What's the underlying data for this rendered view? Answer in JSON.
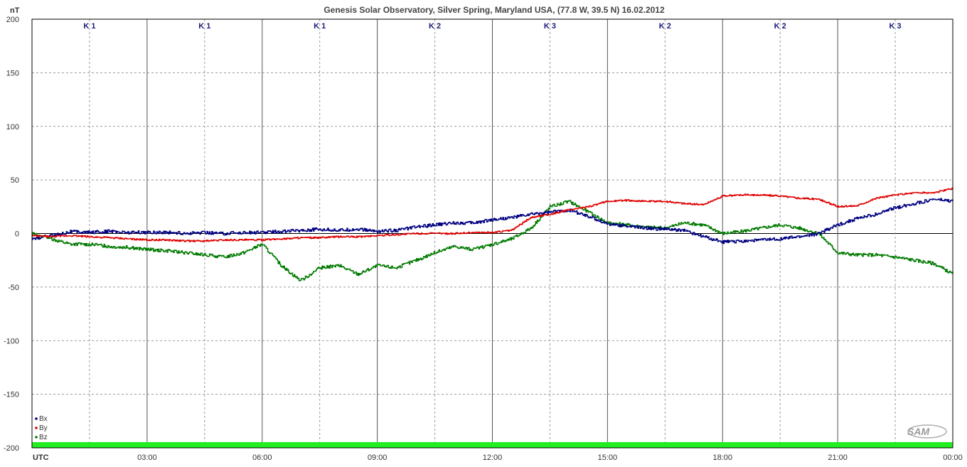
{
  "chart_data": {
    "type": "line",
    "title": "Genesis Solar Observatory, Silver Spring, Maryland USA, (77.8 W, 39.5 N)  16.02.2012",
    "ylabel": "nT",
    "xlabel": "UTC",
    "ylim": [
      -200,
      200
    ],
    "y_ticks": [
      "200",
      "150",
      "100",
      "50",
      "0",
      "-50",
      "-100",
      "-150",
      "-200"
    ],
    "x_ticks": [
      "03:00",
      "06:00",
      "09:00",
      "12:00",
      "15:00",
      "18:00",
      "21:00",
      "00:00"
    ],
    "k_index": [
      "K 1",
      "K 1",
      "K 1",
      "K 2",
      "K 3",
      "K 2",
      "K 2",
      "K 3"
    ],
    "legend_position": "bottom-left",
    "logo": "SAM",
    "grid": true,
    "colors": {
      "Bx": "#000080",
      "By": "#e00000",
      "Bz": "#007a00",
      "baseline_bar": "#22ee22"
    },
    "series": [
      {
        "name": "Bx",
        "x_hours": [
          0,
          0.5,
          1,
          1.5,
          2,
          2.5,
          3,
          3.5,
          4,
          4.5,
          5,
          5.5,
          6,
          6.5,
          7,
          7.5,
          8,
          8.5,
          9,
          9.5,
          10,
          10.5,
          11,
          11.5,
          12,
          12.5,
          13,
          13.5,
          14,
          14.5,
          15,
          15.5,
          16,
          16.5,
          17,
          17.5,
          18,
          18.5,
          19,
          19.5,
          20,
          20.5,
          21,
          21.5,
          22,
          22.5,
          23,
          23.5,
          24
        ],
        "values": [
          -5,
          -2,
          2,
          1,
          2,
          1,
          1,
          1,
          0,
          1,
          0,
          1,
          1,
          2,
          3,
          4,
          3,
          4,
          2,
          3,
          6,
          8,
          10,
          10,
          13,
          15,
          18,
          20,
          22,
          16,
          9,
          7,
          5,
          4,
          3,
          -3,
          -8,
          -7,
          -6,
          -5,
          -3,
          0,
          8,
          14,
          18,
          24,
          28,
          32,
          30
        ]
      },
      {
        "name": "By",
        "x_hours": [
          0,
          0.5,
          1,
          1.5,
          2,
          2.5,
          3,
          3.5,
          4,
          4.5,
          5,
          5.5,
          6,
          6.5,
          7,
          7.5,
          8,
          8.5,
          9,
          9.5,
          10,
          10.5,
          11,
          11.5,
          12,
          12.5,
          13,
          13.5,
          14,
          14.5,
          15,
          15.5,
          16,
          16.5,
          17,
          17.5,
          18,
          18.5,
          19,
          19.5,
          20,
          20.5,
          21,
          21.5,
          22,
          22.5,
          23,
          23.5,
          24
        ],
        "values": [
          -2,
          -3,
          -2,
          -3,
          -4,
          -5,
          -6,
          -6,
          -7,
          -7,
          -6,
          -6,
          -6,
          -5,
          -4,
          -4,
          -3,
          -3,
          -2,
          -1,
          0,
          0,
          0,
          1,
          1,
          3,
          15,
          18,
          22,
          25,
          30,
          31,
          30,
          30,
          28,
          27,
          35,
          36,
          36,
          35,
          33,
          32,
          25,
          26,
          33,
          36,
          38,
          38,
          42
        ]
      },
      {
        "name": "Bz",
        "x_hours": [
          0,
          0.5,
          1,
          1.5,
          2,
          2.5,
          3,
          3.5,
          4,
          4.5,
          5,
          5.5,
          6,
          6.5,
          7,
          7.5,
          8,
          8.5,
          9,
          9.5,
          10,
          10.5,
          11,
          11.5,
          12,
          12.5,
          13,
          13.5,
          14,
          14.5,
          15,
          15.5,
          16,
          16.5,
          17,
          17.5,
          18,
          18.5,
          19,
          19.5,
          20,
          20.5,
          21,
          21.5,
          22,
          22.5,
          23,
          23.5,
          24
        ],
        "values": [
          0,
          -5,
          -10,
          -10,
          -12,
          -13,
          -15,
          -16,
          -18,
          -20,
          -22,
          -18,
          -10,
          -30,
          -44,
          -32,
          -30,
          -38,
          -30,
          -32,
          -25,
          -18,
          -12,
          -15,
          -10,
          -5,
          5,
          25,
          30,
          20,
          10,
          8,
          6,
          5,
          10,
          8,
          0,
          2,
          5,
          8,
          5,
          0,
          -18,
          -20,
          -20,
          -22,
          -25,
          -28,
          -38
        ]
      }
    ]
  }
}
